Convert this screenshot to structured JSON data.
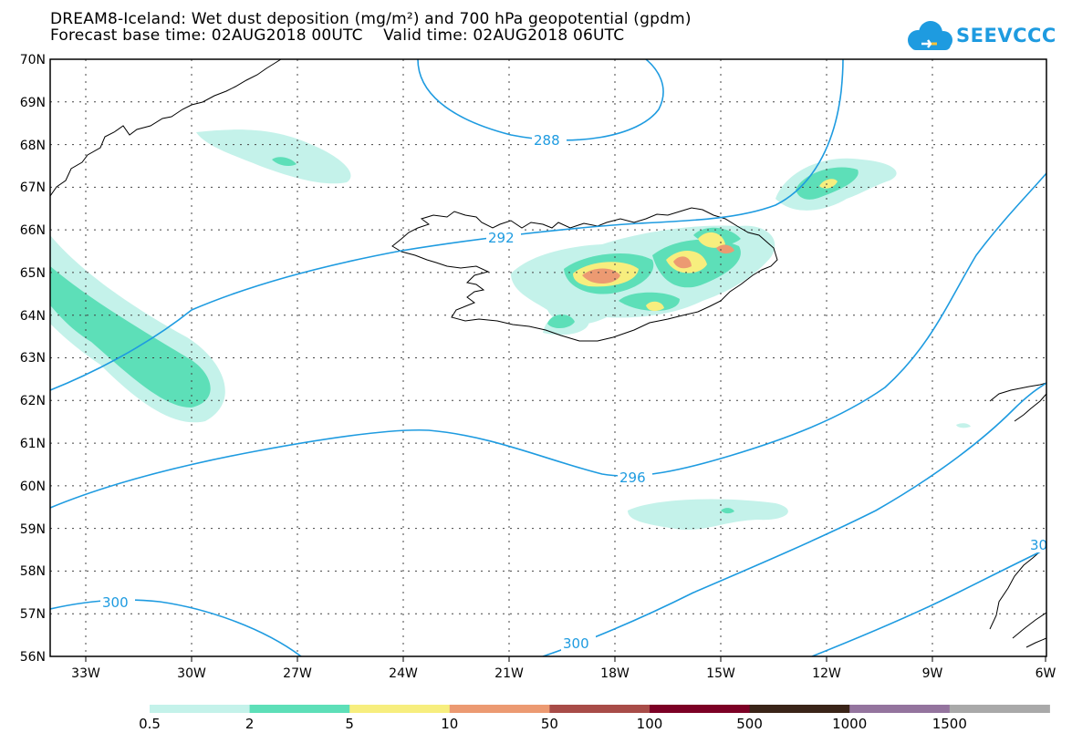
{
  "header": {
    "title_line1": "DREAM8-Iceland: Wet dust deposition (mg/m²) and 700 hPa geopotential (gpdm)",
    "title_line2": "Forecast base time: 02AUG2018 00UTC    Valid time: 02AUG2018 06UTC"
  },
  "logo": {
    "text": "SEEVCCC",
    "icon": "cloud-logo-icon",
    "color": "#1e9be0"
  },
  "map": {
    "lon_range": [
      -34.2,
      -6
    ],
    "lat_range": [
      56,
      70
    ],
    "lat_labels": [
      "70N",
      "69N",
      "68N",
      "67N",
      "66N",
      "65N",
      "64N",
      "63N",
      "62N",
      "61N",
      "60N",
      "59N",
      "58N",
      "57N",
      "56N"
    ],
    "lon_labels": [
      "33W",
      "30W",
      "27W",
      "24W",
      "21W",
      "18W",
      "15W",
      "12W",
      "9W",
      "6W"
    ],
    "contour_color": "#1e9be0",
    "contour_labels": [
      "288",
      "292",
      "296",
      "300",
      "300",
      "30"
    ]
  },
  "legend": {
    "colors": [
      "#c4f2ea",
      "#5ddfb8",
      "#f7ee7e",
      "#ec9a72",
      "#a84c48",
      "#7c0025",
      "#3a2418",
      "#94749e",
      "#a9a9a9"
    ],
    "labels": [
      "0.5",
      "2",
      "5",
      "10",
      "50",
      "100",
      "500",
      "1000",
      "1500"
    ]
  }
}
